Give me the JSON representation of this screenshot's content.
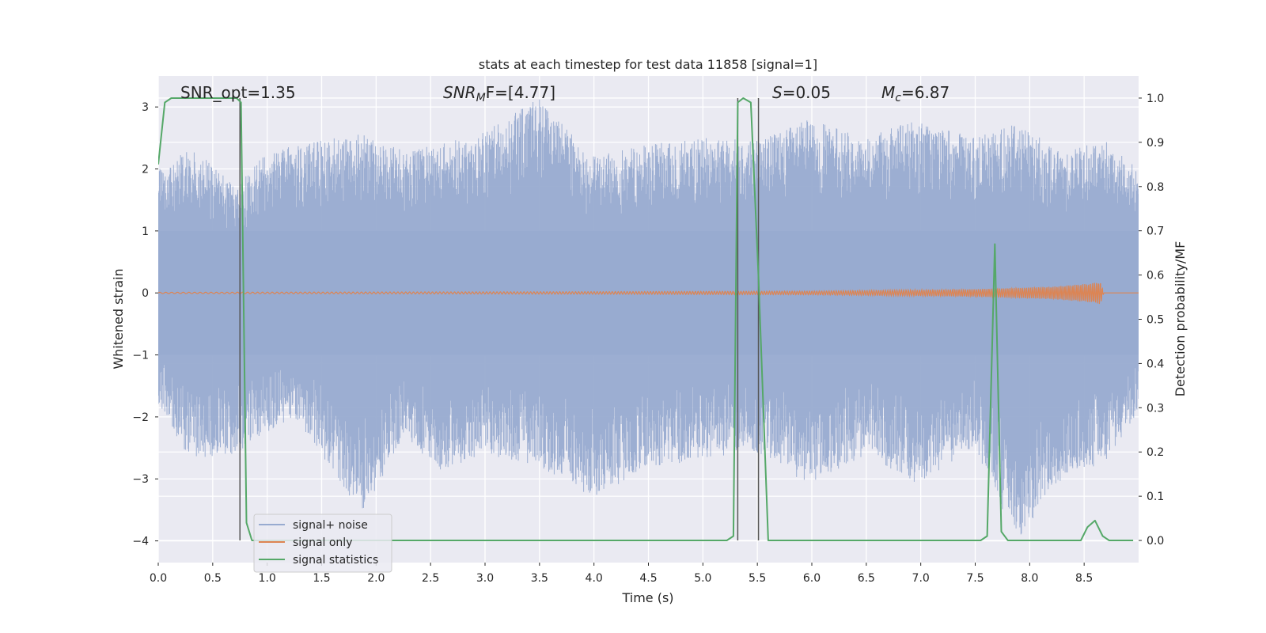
{
  "chart_data": {
    "type": "line",
    "title": "stats at each timestep for test data 11858 [signal=1]",
    "xlabel": "Time (s)",
    "ylabel": "Whitened strain",
    "y2label": "Detection probability/MF",
    "xlim": [
      0.0,
      9.0
    ],
    "ylim": [
      -4.35,
      3.5
    ],
    "y2lim": [
      -0.05,
      1.05
    ],
    "xticks": [
      "0.0",
      "0.5",
      "1.0",
      "1.5",
      "2.0",
      "2.5",
      "3.0",
      "3.5",
      "4.0",
      "4.5",
      "5.0",
      "5.5",
      "6.0",
      "6.5",
      "7.0",
      "7.5",
      "8.0",
      "8.5"
    ],
    "yticks": [
      "3",
      "2",
      "1",
      "0",
      "−1",
      "−2",
      "−3",
      "−4"
    ],
    "y2ticks": [
      "1.0",
      "0.9",
      "0.8",
      "0.7",
      "0.6",
      "0.5",
      "0.4",
      "0.3",
      "0.2",
      "0.1",
      "0.0"
    ],
    "grid": true,
    "legend_position": "lower-left",
    "annotations": {
      "snr_opt": "SNR_opt=1.35",
      "snr_mf_main": "SNR",
      "snr_mf_sub": "M",
      "snr_mf_rest": "F=[4.77]",
      "s_var": "S",
      "s_rest": "=0.05",
      "mc_var": "M",
      "mc_sub": "c",
      "mc_rest": "=6.87"
    },
    "vertical_lines_x": [
      0.75,
      5.32,
      5.51
    ],
    "series": [
      {
        "name": "signal+ noise",
        "color": "#98abd0",
        "envelope_peaks": [
          {
            "x": 0.05,
            "hi": 1.9,
            "lo": -1.9
          },
          {
            "x": 0.28,
            "hi": 2.4,
            "lo": -2.7
          },
          {
            "x": 0.72,
            "hi": 1.7,
            "lo": -2.6
          },
          {
            "x": 0.95,
            "hi": 2.2,
            "lo": -2.3
          },
          {
            "x": 1.25,
            "hi": 2.4,
            "lo": -2.0
          },
          {
            "x": 1.88,
            "hi": 2.6,
            "lo": -3.6
          },
          {
            "x": 2.25,
            "hi": 2.3,
            "lo": -2.3
          },
          {
            "x": 2.6,
            "hi": 2.4,
            "lo": -2.9
          },
          {
            "x": 3.0,
            "hi": 2.6,
            "lo": -2.6
          },
          {
            "x": 3.5,
            "hi": 3.15,
            "lo": -2.8
          },
          {
            "x": 3.98,
            "hi": 2.2,
            "lo": -3.35
          },
          {
            "x": 4.5,
            "hi": 2.4,
            "lo": -2.8
          },
          {
            "x": 5.02,
            "hi": 2.5,
            "lo": -2.7
          },
          {
            "x": 5.5,
            "hi": 2.5,
            "lo": -2.6
          },
          {
            "x": 5.98,
            "hi": 2.8,
            "lo": -3.1
          },
          {
            "x": 6.5,
            "hi": 2.5,
            "lo": -2.6
          },
          {
            "x": 6.95,
            "hi": 2.8,
            "lo": -3.1
          },
          {
            "x": 7.5,
            "hi": 2.5,
            "lo": -2.5
          },
          {
            "x": 7.88,
            "hi": 2.8,
            "lo": -4.0
          },
          {
            "x": 8.25,
            "hi": 2.3,
            "lo": -3.1
          },
          {
            "x": 8.7,
            "hi": 2.5,
            "lo": -2.7
          },
          {
            "x": 9.0,
            "hi": 2.0,
            "lo": -1.9
          }
        ]
      },
      {
        "name": "signal only",
        "color": "#dd8452",
        "amplitude": [
          {
            "x": 0.0,
            "a": 0.01
          },
          {
            "x": 4.0,
            "a": 0.02
          },
          {
            "x": 6.0,
            "a": 0.03
          },
          {
            "x": 7.5,
            "a": 0.06
          },
          {
            "x": 8.2,
            "a": 0.1
          },
          {
            "x": 8.55,
            "a": 0.15
          },
          {
            "x": 8.65,
            "a": 0.18
          },
          {
            "x": 8.68,
            "a": 0.0
          },
          {
            "x": 9.0,
            "a": 0.0
          }
        ]
      },
      {
        "name": "signal statistics",
        "color": "#55a868",
        "x": [
          0.0,
          0.06,
          0.12,
          0.72,
          0.76,
          0.81,
          0.86,
          5.22,
          5.28,
          5.32,
          5.37,
          5.44,
          5.51,
          5.6,
          7.55,
          7.61,
          7.68,
          7.74,
          7.8,
          8.47,
          8.53,
          8.6,
          8.67,
          8.73,
          8.95
        ],
        "y": [
          0.85,
          0.99,
          1.0,
          1.0,
          0.99,
          0.04,
          0.0,
          0.0,
          0.01,
          0.99,
          1.0,
          0.99,
          0.6,
          0.0,
          0.0,
          0.01,
          0.67,
          0.02,
          0.0,
          0.0,
          0.03,
          0.045,
          0.01,
          0.0,
          0.0
        ]
      }
    ]
  }
}
